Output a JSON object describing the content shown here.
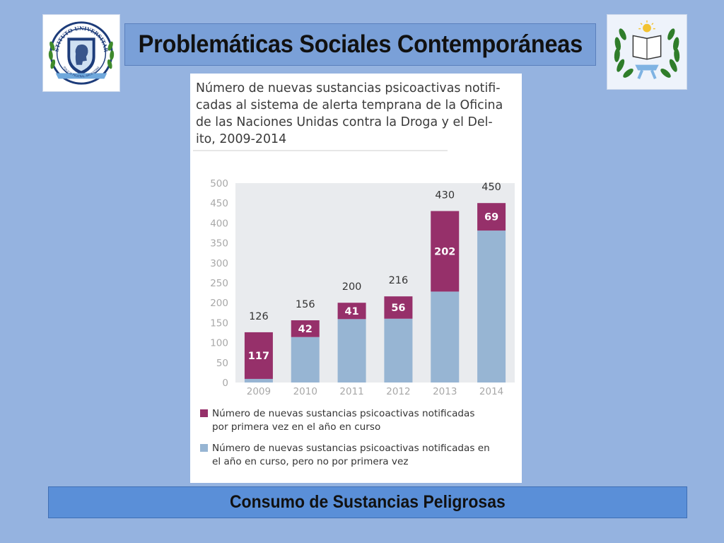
{
  "header": {
    "title": "Problemáticas Sociales Contemporáneas",
    "left_logo": {
      "icon": "instituto-universitario-seal-icon",
      "ring_text_top": "INSTITUTO UNIVERSITARIO",
      "ring_text_bottom": "POLICIA FEDERAL ARGENTINA"
    },
    "right_logo": {
      "icon": "laurel-open-book-emblem-icon"
    }
  },
  "chart_data": {
    "type": "bar",
    "stacked": true,
    "title_lines": [
      "Número de nuevas sustancias psicoactivas notifi-",
      "cadas al sistema de alerta temprana de la Oficina",
      "de las Naciones Unidas contra la Droga y el Del-",
      "ito, 2009-2014"
    ],
    "categories": [
      "2009",
      "2010",
      "2011",
      "2012",
      "2013",
      "2014"
    ],
    "ylim": [
      0,
      500
    ],
    "y_ticks": [
      "0",
      "50",
      "100",
      "150",
      "200",
      "250",
      "300",
      "350",
      "400",
      "450",
      "500"
    ],
    "grid": false,
    "legend_position": "bottom",
    "series": [
      {
        "name": "Número de nuevas sustancias psicoactivas notificadas en el año en curso, pero no por primera vez",
        "color": "#97b5d3",
        "values": [
          9,
          114,
          159,
          160,
          228,
          381
        ]
      },
      {
        "name": "Número de nuevas sustancias psicoactivas notificadas por primera vez en el año en curso",
        "color": "#96306a",
        "values": [
          117,
          42,
          41,
          56,
          202,
          69
        ],
        "labels": [
          "117",
          "42",
          "41",
          "56",
          "202",
          "69"
        ]
      }
    ],
    "totals": [
      "126",
      "156",
      "200",
      "216",
      "430",
      "450"
    ],
    "legend": [
      {
        "color": "#96306a",
        "lines": [
          "Número de nuevas sustancias psicoactivas notificadas",
          "por primera vez en el año en curso"
        ]
      },
      {
        "color": "#97b5d3",
        "lines": [
          "Número de nuevas sustancias psicoactivas notificadas en",
          "el año en curso, pero no por primera vez"
        ]
      }
    ]
  },
  "footer": {
    "title": "Consumo de Sustancias Peligrosas"
  }
}
